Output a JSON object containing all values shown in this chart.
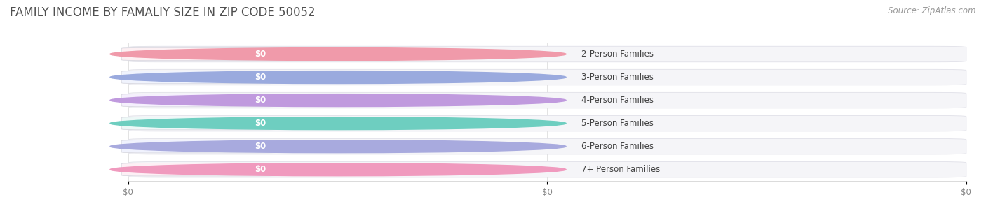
{
  "title": "FAMILY INCOME BY FAMALIY SIZE IN ZIP CODE 50052",
  "source_text": "Source: ZipAtlas.com",
  "categories": [
    "2-Person Families",
    "3-Person Families",
    "4-Person Families",
    "5-Person Families",
    "6-Person Families",
    "7+ Person Families"
  ],
  "values": [
    0,
    0,
    0,
    0,
    0,
    0
  ],
  "value_labels": [
    "$0",
    "$0",
    "$0",
    "$0",
    "$0",
    "$0"
  ],
  "bar_colors": [
    "#f09aaa",
    "#9aaade",
    "#c09ade",
    "#6ecec0",
    "#a8aade",
    "#f09abe"
  ],
  "label_bg_colors": [
    "#fdf0f3",
    "#f0f3fd",
    "#f5f0fd",
    "#edf8f7",
    "#f0f2fd",
    "#fdf0f5"
  ],
  "bar_bg_color": "#f5f5f8",
  "bar_bg_edge_color": "#e0e0e8",
  "pill_border_color": "#d8d8e0",
  "background_color": "#ffffff",
  "title_color": "#505050",
  "title_fontsize": 12,
  "source_fontsize": 8.5,
  "label_fontsize": 8.5,
  "value_fontsize": 8.5,
  "fig_bg_color": "#ffffff"
}
